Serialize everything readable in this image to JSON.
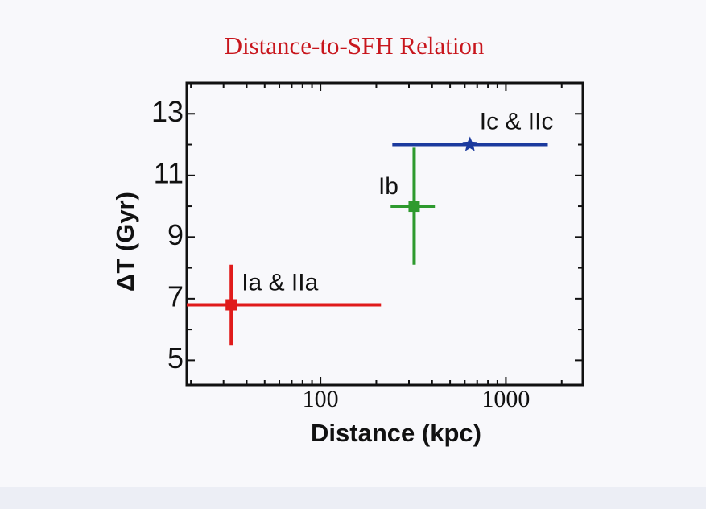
{
  "chart_data": {
    "type": "scatter",
    "title": "Distance-to-SFH Relation",
    "xlabel": "Distance (kpc)",
    "ylabel": "ΔT (Gyr)",
    "xscale": "log",
    "xlim": [
      19,
      2600
    ],
    "ylim": [
      4.2,
      14
    ],
    "xticks": [
      100,
      1000
    ],
    "xminorticks": [
      20,
      30,
      40,
      50,
      60,
      70,
      80,
      90,
      200,
      300,
      400,
      500,
      600,
      700,
      800,
      900,
      2000
    ],
    "yticks": [
      5,
      7,
      9,
      11,
      13
    ],
    "yminorticks": [
      6,
      8,
      10,
      12
    ],
    "points": [
      {
        "label": "Ia & IIa",
        "color": "#e01b1b",
        "marker": "square",
        "x": 33,
        "y": 6.8,
        "x_low": 19,
        "x_high": 212,
        "y_low": 5.5,
        "y_high": 8.1
      },
      {
        "label": "Ib",
        "color": "#2e9a2e",
        "marker": "square",
        "x": 320,
        "y": 10,
        "x_low": 239,
        "x_high": 414,
        "y_low": 8.1,
        "y_high": 11.9
      },
      {
        "label": "Ic & IIc",
        "color": "#1b3a9e",
        "marker": "star",
        "x": 640,
        "y": 12,
        "x_low": 244,
        "x_high": 1683
      }
    ]
  }
}
